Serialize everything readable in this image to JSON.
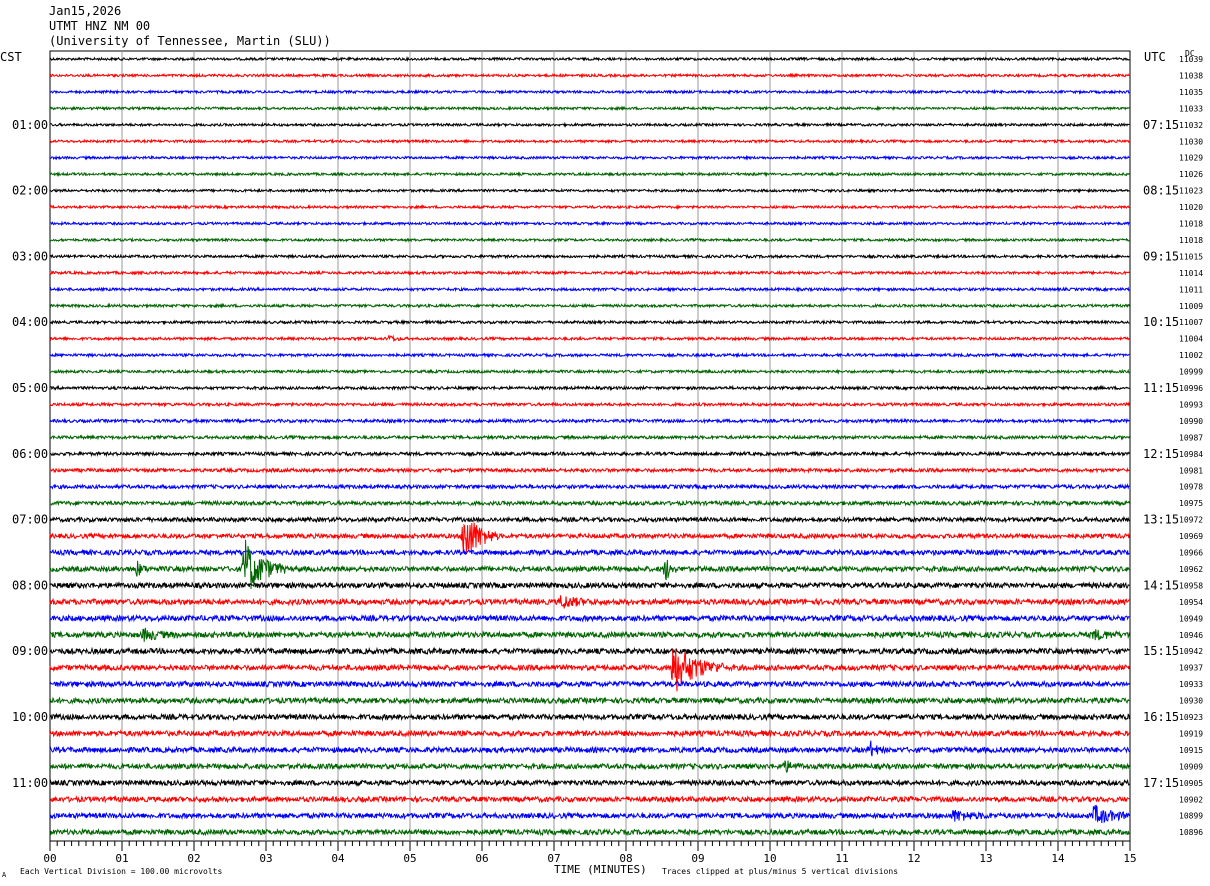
{
  "header": {
    "date": "Jan15,2026",
    "station": "UTMT HNZ NM 00",
    "institution": "(University of Tennessee, Martin (SLU))"
  },
  "left_zone": "CST",
  "right_zone": "UTC",
  "dc_label": "DC",
  "footer": {
    "left": "Each Vertical Division =  100.00 microvolts",
    "xlabel": "TIME (MINUTES)",
    "right": "Traces clipped at plus/minus 5 vertical divisions",
    "mark": "A"
  },
  "colors": {
    "cycle": [
      "#000000",
      "#ff0000",
      "#0000ff",
      "#006400"
    ]
  },
  "chart_data": {
    "type": "line",
    "title": "UTMT HNZ NM 00",
    "xlabel": "TIME (MINUTES)",
    "xlim": [
      0,
      15
    ],
    "x_ticks": [
      "00",
      "01",
      "02",
      "03",
      "04",
      "05",
      "06",
      "07",
      "08",
      "09",
      "10",
      "11",
      "12",
      "13",
      "14",
      "15"
    ],
    "trace_count": 48,
    "left_hour_labels": [
      "01:00",
      "02:00",
      "03:00",
      "04:00",
      "05:00",
      "06:00",
      "07:00",
      "08:00",
      "09:00",
      "10:00",
      "11:00"
    ],
    "right_hour_labels": [
      "07:15",
      "08:15",
      "09:15",
      "10:15",
      "11:15",
      "12:15",
      "13:15",
      "14:15",
      "15:15",
      "16:15",
      "17:15"
    ],
    "dc_offsets": [
      11039,
      11038,
      11035,
      11033,
      11032,
      11030,
      11029,
      11026,
      11023,
      11020,
      11018,
      11018,
      11015,
      11014,
      11011,
      11009,
      11007,
      11004,
      11002,
      10999,
      10996,
      10993,
      10990,
      10987,
      10984,
      10981,
      10978,
      10975,
      10972,
      10969,
      10966,
      10962,
      10958,
      10954,
      10949,
      10946,
      10942,
      10937,
      10933,
      10930,
      10923,
      10919,
      10915,
      10909,
      10905,
      10902,
      10899,
      10896
    ],
    "trace_noise": [
      1.2,
      1.2,
      1.2,
      1.2,
      1.2,
      1.2,
      1.2,
      1.2,
      1.2,
      1.2,
      1.2,
      1.2,
      1.3,
      1.3,
      1.3,
      1.3,
      1.3,
      1.3,
      1.3,
      1.3,
      1.4,
      1.4,
      1.5,
      1.5,
      1.6,
      1.7,
      1.8,
      1.9,
      2.1,
      2.2,
      2.4,
      2.5,
      2.6,
      2.7,
      2.7,
      2.7,
      2.7,
      2.6,
      2.6,
      2.6,
      2.6,
      2.6,
      2.6,
      2.5,
      2.5,
      2.5,
      2.5,
      2.5
    ],
    "events": [
      {
        "trace": 17,
        "minute": 4.7,
        "amplitude": 3,
        "duration": 0.15
      },
      {
        "trace": 29,
        "minute": 5.75,
        "amplitude": 28,
        "duration": 0.3
      },
      {
        "trace": 31,
        "minute": 1.2,
        "amplitude": 8,
        "duration": 0.1
      },
      {
        "trace": 31,
        "minute": 2.7,
        "amplitude": 30,
        "duration": 0.35
      },
      {
        "trace": 31,
        "minute": 8.55,
        "amplitude": 12,
        "duration": 0.1
      },
      {
        "trace": 33,
        "minute": 7.1,
        "amplitude": 6,
        "duration": 0.3
      },
      {
        "trace": 35,
        "minute": 1.3,
        "amplitude": 5,
        "duration": 0.3
      },
      {
        "trace": 35,
        "minute": 14.5,
        "amplitude": 4,
        "duration": 0.3
      },
      {
        "trace": 37,
        "minute": 8.65,
        "amplitude": 26,
        "duration": 0.45
      },
      {
        "trace": 42,
        "minute": 11.4,
        "amplitude": 7,
        "duration": 0.12
      },
      {
        "trace": 43,
        "minute": 10.2,
        "amplitude": 5,
        "duration": 0.2
      },
      {
        "trace": 46,
        "minute": 12.55,
        "amplitude": 5,
        "duration": 0.35
      },
      {
        "trace": 46,
        "minute": 14.5,
        "amplitude": 9,
        "duration": 0.35
      }
    ]
  }
}
